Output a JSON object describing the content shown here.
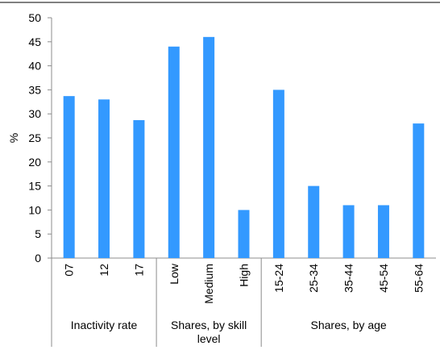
{
  "chart_data": {
    "type": "bar",
    "ylabel": "%",
    "ylim": [
      0,
      50
    ],
    "yticks": [
      0,
      5,
      10,
      15,
      20,
      25,
      30,
      35,
      40,
      45,
      50
    ],
    "bar_color": "#3399ff",
    "grid": false,
    "categories": [
      "07",
      "12",
      "17",
      "Low",
      "Medium",
      "High",
      "15-24",
      "25-34",
      "35-44",
      "45-54",
      "55-64"
    ],
    "values": [
      33.7,
      33.0,
      28.7,
      44.0,
      46.0,
      10.0,
      35.0,
      15.0,
      11.0,
      11.0,
      28.0
    ],
    "groups": [
      {
        "label": "Inactivity rate",
        "count": 3
      },
      {
        "label": "Shares, by skill level",
        "count": 3
      },
      {
        "label": "Shares, by age",
        "count": 5
      }
    ]
  }
}
